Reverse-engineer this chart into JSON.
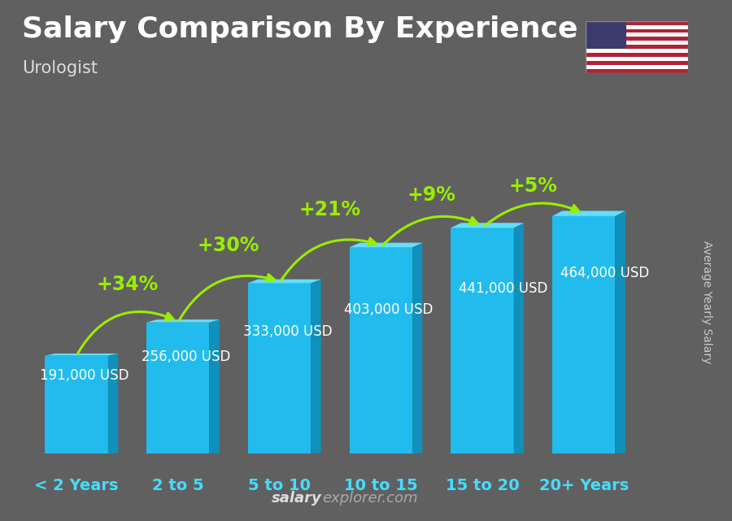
{
  "title": "Salary Comparison By Experience",
  "subtitle": "Urologist",
  "ylabel": "Average Yearly Salary",
  "watermark": "salaryexplorer.com",
  "categories": [
    "< 2 Years",
    "2 to 5",
    "5 to 10",
    "10 to 15",
    "15 to 20",
    "20+ Years"
  ],
  "values": [
    191000,
    256000,
    333000,
    403000,
    441000,
    464000
  ],
  "labels": [
    "191,000 USD",
    "256,000 USD",
    "333,000 USD",
    "403,000 USD",
    "441,000 USD",
    "464,000 USD"
  ],
  "pct_changes": [
    "+34%",
    "+30%",
    "+21%",
    "+9%",
    "+5%"
  ],
  "bar_color_front": "#22BBEE",
  "bar_color_top": "#66DDFF",
  "bar_color_side": "#1090BB",
  "bg_color": "#606060",
  "title_color": "#ffffff",
  "subtitle_color": "#dddddd",
  "label_color": "#ffffff",
  "category_color": "#44DDFF",
  "pct_color": "#99EE00",
  "arrow_color": "#99EE00",
  "ylabel_color": "#cccccc",
  "watermark_bold_color": "#dddddd",
  "watermark_normal_color": "#aaaaaa",
  "title_fontsize": 26,
  "subtitle_fontsize": 15,
  "label_fontsize": 12,
  "pct_fontsize": 17,
  "cat_fontsize": 14,
  "ylabel_fontsize": 10,
  "watermark_fontsize": 13,
  "figsize": [
    9.0,
    6.41
  ],
  "dpi": 100
}
